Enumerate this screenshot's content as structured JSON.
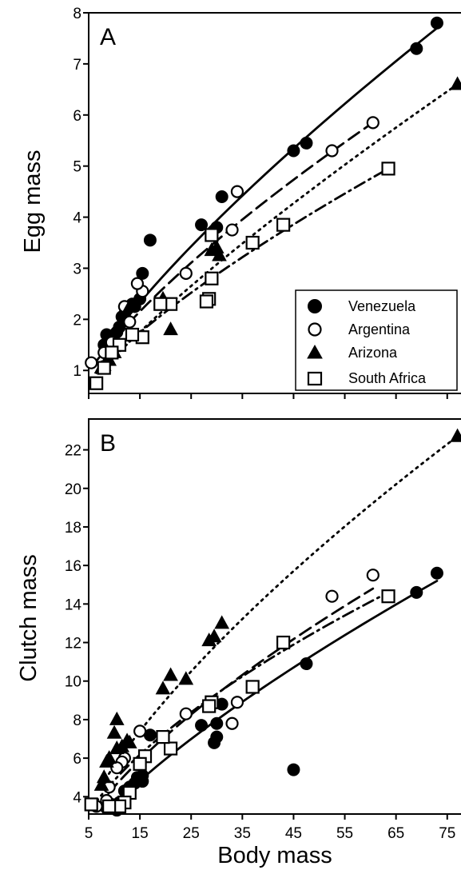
{
  "colors": {
    "foreground": "#000000",
    "background": "#ffffff",
    "marker_hollow_fill": "#ffffff"
  },
  "xlabel": "Body mass",
  "legend": {
    "placement": "lower-right of panel A",
    "entries": [
      {
        "label": "Venezuela",
        "marker": "filled-circle",
        "line": "solid"
      },
      {
        "label": "Argentina",
        "marker": "hollow-circle",
        "line": "dashed"
      },
      {
        "label": "Arizona",
        "marker": "filled-triangle",
        "line": "dotted"
      },
      {
        "label": "South Africa",
        "marker": "hollow-square",
        "line": "dash-dot"
      }
    ]
  },
  "chart_data": [
    {
      "type": "scatter",
      "panel": "A",
      "title": "",
      "xlabel": "Body mass",
      "ylabel": "Egg mass",
      "xlim": [
        5,
        78
      ],
      "ylim": [
        0.55,
        8
      ],
      "xticks": [
        5,
        15,
        25,
        35,
        45,
        55,
        65,
        75
      ],
      "yticks": [
        1,
        2,
        3,
        4,
        5,
        6,
        7,
        8
      ],
      "grid": false,
      "series": [
        {
          "name": "Venezuela",
          "points": [
            [
              73,
              7.8
            ],
            [
              69,
              7.3
            ],
            [
              47.5,
              5.45
            ],
            [
              45,
              5.3
            ],
            [
              31,
              4.4
            ],
            [
              30,
              3.8
            ],
            [
              27,
              3.85
            ],
            [
              17,
              3.55
            ],
            [
              15.5,
              2.9
            ],
            [
              15,
              2.4
            ],
            [
              14,
              2.25
            ],
            [
              13.5,
              2.3
            ],
            [
              12,
              2.1
            ],
            [
              11.5,
              2.05
            ],
            [
              11,
              1.85
            ],
            [
              10.5,
              1.75
            ],
            [
              10,
              1.7
            ],
            [
              9.5,
              1.6
            ],
            [
              9,
              1.65
            ],
            [
              8.5,
              1.7
            ],
            [
              8,
              1.5
            ],
            [
              9,
              1.45
            ],
            [
              10,
              1.55
            ]
          ],
          "fit": [
            [
              8,
              1.45
            ],
            [
              73,
              7.7
            ]
          ]
        },
        {
          "name": "Argentina",
          "points": [
            [
              60.5,
              5.85
            ],
            [
              52.5,
              5.3
            ],
            [
              34,
              4.5
            ],
            [
              33,
              3.75
            ],
            [
              24,
              2.9
            ],
            [
              15.5,
              2.55
            ],
            [
              14.5,
              2.7
            ],
            [
              12,
              2.25
            ],
            [
              13,
              1.95
            ],
            [
              9.5,
              1.55
            ],
            [
              8,
              1.35
            ],
            [
              5.5,
              1.15
            ]
          ],
          "fit": [
            [
              5.5,
              1.05
            ],
            [
              60.5,
              5.85
            ]
          ]
        },
        {
          "name": "Arizona",
          "points": [
            [
              77,
              6.6
            ],
            [
              30,
              3.4
            ],
            [
              29,
              3.35
            ],
            [
              30.5,
              3.25
            ],
            [
              21,
              1.8
            ],
            [
              19.5,
              2.4
            ],
            [
              13,
              2.25
            ],
            [
              10,
              1.35
            ],
            [
              9,
              1.2
            ],
            [
              8,
              1.1
            ],
            [
              7.5,
              1.05
            ]
          ],
          "fit": [
            [
              7.5,
              1.0
            ],
            [
              77,
              6.6
            ]
          ]
        },
        {
          "name": "South Africa",
          "points": [
            [
              63.5,
              4.95
            ],
            [
              43,
              3.85
            ],
            [
              37,
              3.5
            ],
            [
              29,
              3.65
            ],
            [
              29,
              2.8
            ],
            [
              28.5,
              2.4
            ],
            [
              28,
              2.35
            ],
            [
              21,
              2.3
            ],
            [
              19,
              2.3
            ],
            [
              15.5,
              1.65
            ],
            [
              13.5,
              1.7
            ],
            [
              11,
              1.5
            ],
            [
              9.5,
              1.35
            ],
            [
              8,
              1.05
            ],
            [
              6.5,
              0.75
            ]
          ],
          "fit": [
            [
              6.5,
              0.95
            ],
            [
              63.5,
              4.95
            ]
          ]
        }
      ]
    },
    {
      "type": "scatter",
      "panel": "B",
      "title": "",
      "xlabel": "Body mass",
      "ylabel": "Clutch mass",
      "xlim": [
        5,
        78
      ],
      "ylim": [
        3.1,
        23.6
      ],
      "xticks": [
        5,
        15,
        25,
        35,
        45,
        55,
        65,
        75
      ],
      "yticks": [
        4,
        6,
        8,
        10,
        12,
        14,
        16,
        18,
        20,
        22
      ],
      "grid": false,
      "series": [
        {
          "name": "Venezuela",
          "points": [
            [
              73,
              15.6
            ],
            [
              69,
              14.6
            ],
            [
              47.5,
              10.9
            ],
            [
              45,
              5.4
            ],
            [
              31,
              8.8
            ],
            [
              30,
              7.8
            ],
            [
              30,
              7.1
            ],
            [
              29.5,
              6.8
            ],
            [
              27,
              7.7
            ],
            [
              17,
              7.2
            ],
            [
              15.5,
              5.1
            ],
            [
              15.5,
              4.8
            ],
            [
              14.5,
              5.0
            ],
            [
              14,
              4.7
            ],
            [
              13,
              4.5
            ],
            [
              12.5,
              4.2
            ],
            [
              12,
              4.3
            ],
            [
              11,
              3.7
            ],
            [
              10.5,
              3.3
            ],
            [
              10,
              3.5
            ],
            [
              9.5,
              3.6
            ],
            [
              8.5,
              3.4
            ]
          ],
          "fit": [
            [
              8.5,
              3.2
            ],
            [
              73,
              15.2
            ]
          ]
        },
        {
          "name": "Argentina",
          "points": [
            [
              60.5,
              15.5
            ],
            [
              52.5,
              14.4
            ],
            [
              34,
              8.9
            ],
            [
              33,
              7.8
            ],
            [
              24,
              8.3
            ],
            [
              15,
              7.4
            ],
            [
              12,
              6.0
            ],
            [
              11.5,
              5.8
            ],
            [
              10.5,
              5.5
            ],
            [
              9,
              4.5
            ],
            [
              8.5,
              3.8
            ],
            [
              6.5,
              3.5
            ]
          ],
          "fit": [
            [
              6.5,
              3.4
            ],
            [
              60.5,
              14.8
            ]
          ]
        },
        {
          "name": "Arizona",
          "points": [
            [
              77,
              22.7
            ],
            [
              31,
              13.0
            ],
            [
              29.5,
              12.3
            ],
            [
              28.5,
              12.1
            ],
            [
              24,
              10.1
            ],
            [
              21,
              10.3
            ],
            [
              19.5,
              9.6
            ],
            [
              13,
              6.8
            ],
            [
              12.5,
              6.9
            ],
            [
              11.5,
              6.6
            ],
            [
              10.5,
              8.0
            ],
            [
              10,
              7.3
            ],
            [
              10.5,
              6.5
            ],
            [
              9,
              6.0
            ],
            [
              8.5,
              5.8
            ],
            [
              8,
              5.0
            ],
            [
              7.5,
              4.6
            ]
          ],
          "fit": [
            [
              7.5,
              4.6
            ],
            [
              77,
              22.7
            ]
          ]
        },
        {
          "name": "South Africa",
          "points": [
            [
              63.5,
              14.4
            ],
            [
              43,
              12.0
            ],
            [
              37,
              9.7
            ],
            [
              29,
              8.9
            ],
            [
              28.5,
              8.7
            ],
            [
              21,
              6.5
            ],
            [
              19.5,
              7.1
            ],
            [
              16,
              6.1
            ],
            [
              15,
              5.7
            ],
            [
              13,
              4.2
            ],
            [
              12,
              3.7
            ],
            [
              11,
              3.5
            ],
            [
              9,
              3.5
            ],
            [
              5.5,
              3.6
            ]
          ],
          "fit": [
            [
              5.5,
              3.4
            ],
            [
              63.5,
              14.6
            ]
          ]
        }
      ]
    }
  ]
}
